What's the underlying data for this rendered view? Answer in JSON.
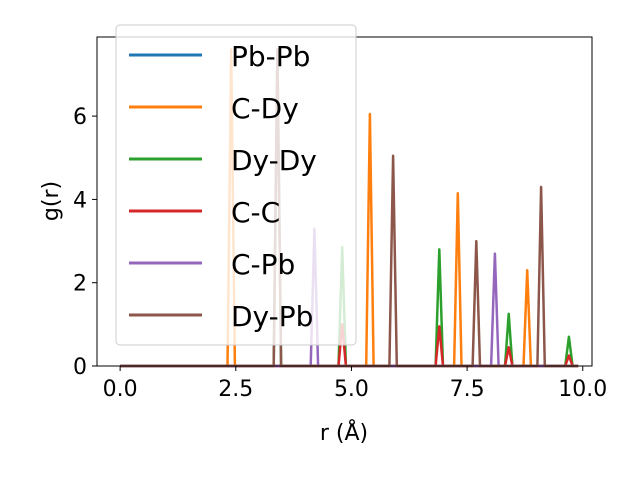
{
  "chart_data": {
    "type": "line",
    "title": "",
    "xlabel": "r (Å)",
    "ylabel": "g(r)",
    "xlim": [
      -0.5,
      10.2
    ],
    "ylim": [
      0,
      7.9
    ],
    "xticks": [
      0.0,
      2.5,
      5.0,
      7.5,
      10.0
    ],
    "xtick_labels": [
      "0.0",
      "2.5",
      "5.0",
      "7.5",
      "10.0"
    ],
    "yticks": [
      0,
      2,
      4,
      6
    ],
    "ytick_labels": [
      "0",
      "2",
      "4",
      "6"
    ],
    "grid": false,
    "legend_position": "top-left",
    "series": [
      {
        "name": "Pb-Pb",
        "color": "#1f77b4",
        "peaks": []
      },
      {
        "name": "C-Dy",
        "color": "#ff7f0e",
        "peaks": [
          [
            2.4,
            7.6
          ],
          [
            5.4,
            6.05
          ],
          [
            7.3,
            4.15
          ],
          [
            8.8,
            2.3
          ]
        ]
      },
      {
        "name": "Dy-Dy",
        "color": "#2ca02c",
        "peaks": [
          [
            3.4,
            7.6
          ],
          [
            4.8,
            2.85
          ],
          [
            6.9,
            2.8
          ],
          [
            8.4,
            1.25
          ],
          [
            9.7,
            0.7
          ]
        ]
      },
      {
        "name": "C-C",
        "color": "#d62728",
        "peaks": [
          [
            4.8,
            1.0
          ],
          [
            6.9,
            0.95
          ],
          [
            8.4,
            0.45
          ],
          [
            9.7,
            0.25
          ]
        ]
      },
      {
        "name": "C-Pb",
        "color": "#9467bd",
        "peaks": [
          [
            4.2,
            3.3
          ],
          [
            8.1,
            2.7
          ]
        ]
      },
      {
        "name": "Dy-Pb",
        "color": "#8c564b",
        "peaks": [
          [
            3.4,
            7.6
          ],
          [
            5.9,
            5.05
          ],
          [
            7.7,
            3.0
          ],
          [
            9.1,
            4.3
          ]
        ]
      }
    ]
  }
}
